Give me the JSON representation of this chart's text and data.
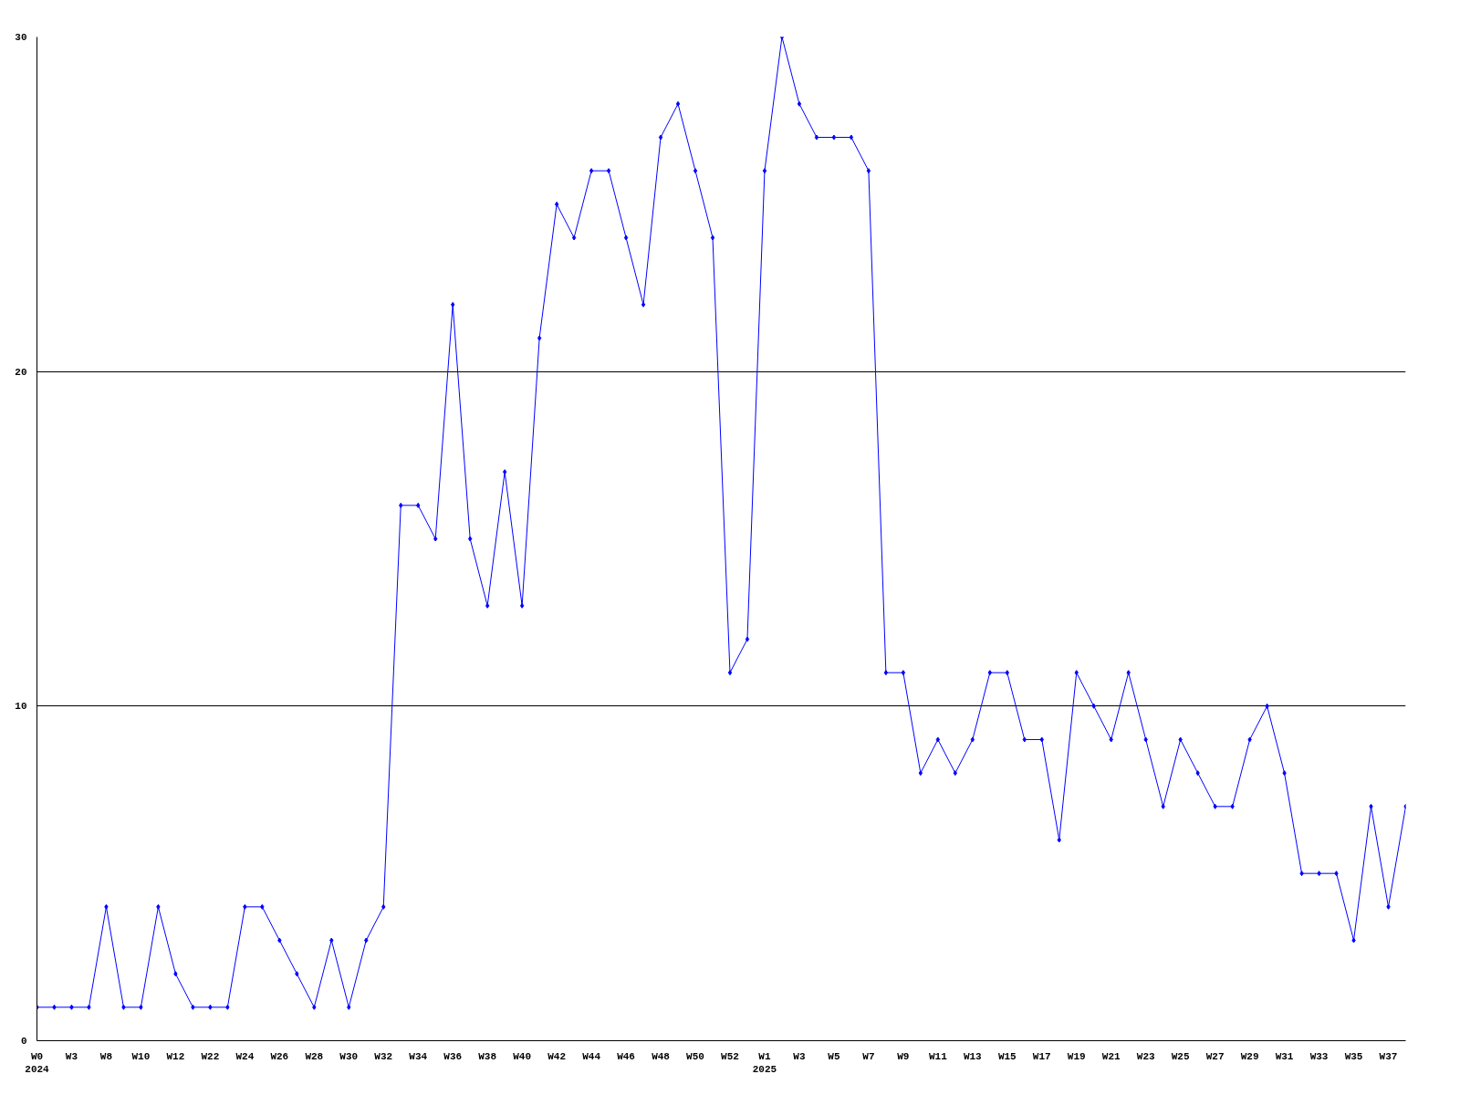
{
  "chart_data": {
    "type": "line",
    "categories": [
      "W0\n2024",
      null,
      "W3",
      null,
      "W8",
      null,
      "W10",
      null,
      "W12",
      null,
      "W22",
      null,
      "W24",
      null,
      "W26",
      null,
      "W28",
      null,
      "W30",
      null,
      "W32",
      null,
      "W34",
      null,
      "W36",
      null,
      "W38",
      null,
      "W40",
      null,
      "W42",
      null,
      "W44",
      null,
      "W46",
      null,
      "W48",
      null,
      "W50",
      null,
      "W52",
      null,
      "W1\n2025",
      null,
      "W3",
      null,
      "W5",
      null,
      "W7",
      null,
      "W9",
      null,
      "W11",
      null,
      "W13",
      null,
      "W15",
      null,
      "W17",
      null,
      "W19",
      null,
      "W21",
      null,
      "W23",
      null,
      "W25",
      null,
      "W27",
      null,
      "W29",
      null,
      "W31",
      null,
      "W33",
      null,
      "W35",
      null,
      "W37",
      null
    ],
    "values": [
      1,
      1,
      1,
      1,
      4,
      1,
      1,
      4,
      2,
      1,
      1,
      1,
      4,
      4,
      3,
      2,
      1,
      3,
      1,
      3,
      4,
      16,
      16,
      15,
      22,
      15,
      13,
      17,
      13,
      21,
      25,
      24,
      26,
      26,
      24,
      22,
      27,
      28,
      26,
      24,
      11,
      12,
      26,
      30,
      28,
      27,
      27,
      27,
      26,
      11,
      11,
      8,
      9,
      8,
      9,
      11,
      11,
      9,
      9,
      6,
      11,
      10,
      9,
      11,
      9,
      7,
      9,
      8,
      7,
      7,
      9,
      10,
      8,
      5,
      5,
      5,
      3,
      7,
      4,
      7
    ],
    "color": "#0000ff",
    "marker": "diamond",
    "line_style": "solid",
    "ylim": [
      0,
      30
    ],
    "yticks": [
      0,
      10,
      20,
      30
    ],
    "grid": "y"
  }
}
